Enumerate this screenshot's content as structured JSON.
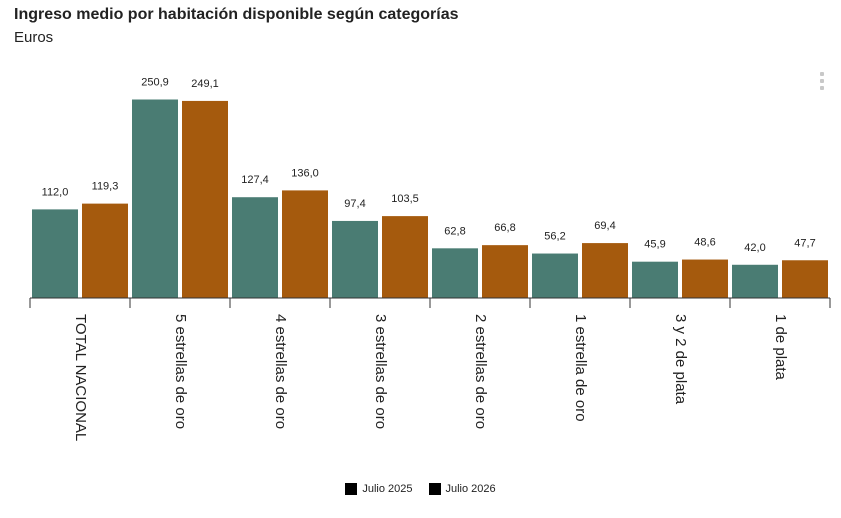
{
  "header": {
    "title": "Ingreso medio por habitación disponible según categorías",
    "subtitle": "Euros"
  },
  "legend": {
    "items": [
      {
        "label": "Julio 2025",
        "swatch_color": "#000000"
      },
      {
        "label": "Julio 2026",
        "swatch_color": "#000000"
      }
    ]
  },
  "colors": {
    "series_2025": "#4a7c73",
    "series_2026": "#a55a0d",
    "axis": "#333333"
  },
  "chart_data": {
    "type": "bar",
    "title": "Ingreso medio por habitación disponible según categorías",
    "subtitle": "Euros",
    "xlabel": "",
    "ylabel": "",
    "ylim": [
      0,
      265
    ],
    "grid": false,
    "legend_position": "bottom",
    "categories": [
      "TOTAL NACIONAL",
      "5 estrellas de oro",
      "4 estrellas de oro",
      "3 estrellas de oro",
      "2 estrellas de oro",
      "1 estrella de oro",
      "3 y 2 de plata",
      "1 de plata"
    ],
    "series": [
      {
        "name": "Julio 2025",
        "values": [
          112.0,
          250.9,
          127.4,
          97.4,
          62.8,
          56.2,
          45.9,
          42.0
        ],
        "labels": [
          "112,0",
          "250,9",
          "127,4",
          "97,4",
          "62,8",
          "56,2",
          "45,9",
          "42,0"
        ]
      },
      {
        "name": "Julio 2026",
        "values": [
          119.3,
          249.1,
          136.0,
          103.5,
          66.8,
          69.4,
          48.6,
          47.7
        ],
        "labels": [
          "119,3",
          "249,1",
          "136,0",
          "103,5",
          "66,8",
          "69,4",
          "48,6",
          "47,7"
        ]
      }
    ]
  }
}
